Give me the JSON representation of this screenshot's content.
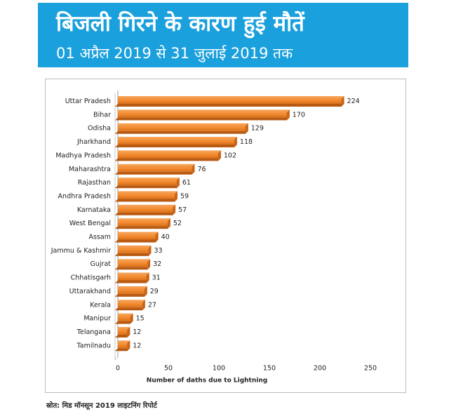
{
  "header": {
    "title": "बिजली गिरने के कारण हुई मौतें",
    "subtitle": "01 अप्रैल 2019 से 31 जुलाई 2019 तक"
  },
  "footer": {
    "source": "स्रोत: मिड मॉनसून 2019 लाइटनिंग रिपोर्ट"
  },
  "chart_data": {
    "type": "bar",
    "orientation": "horizontal",
    "title": "",
    "xlabel": "Number of daths due to Lightning",
    "ylabel": "",
    "xlim": [
      0,
      250
    ],
    "x_ticks": [
      0,
      50,
      100,
      150,
      200,
      250
    ],
    "grid": false,
    "legend": "none",
    "bar_color": "#f28b30",
    "categories": [
      "Uttar Pradesh",
      "Bihar",
      "Odisha",
      "Jharkhand",
      "Madhya Pradesh",
      "Maharashtra",
      "Rajasthan",
      "Andhra Pradesh",
      "Karnataka",
      "West Bengal",
      "Assam",
      "Jammu & Kashmir",
      "Gujrat",
      "Chhatisgarh",
      "Uttarakhand",
      "Kerala",
      "Manipur",
      "Telangana",
      "Tamilnadu"
    ],
    "values": [
      224,
      170,
      129,
      118,
      102,
      76,
      61,
      59,
      57,
      52,
      40,
      33,
      32,
      31,
      29,
      27,
      15,
      12,
      12
    ]
  }
}
